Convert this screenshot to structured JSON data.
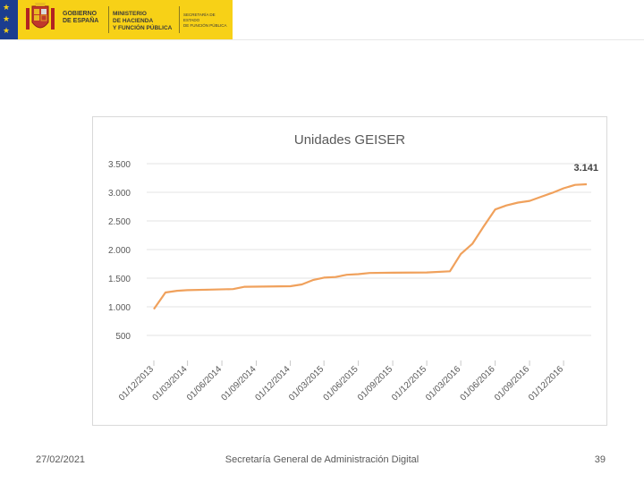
{
  "header": {
    "org_line1": "GOBIERNO",
    "org_line2": "DE ESPAÑA",
    "ministry_line1": "MINISTERIO",
    "ministry_line2": "DE HACIENDA",
    "ministry_line3": "Y FUNCIÓN PÚBLICA",
    "secretariat_line1": "SECRETARÍA DE ESTADO",
    "secretariat_line2": "DE FUNCIÓN PÚBLICA"
  },
  "footer": {
    "date": "27/02/2021",
    "center": "Secretaría General de Administración Digital",
    "page": "39"
  },
  "chart_data": {
    "type": "line",
    "title": "Unidades GEISER",
    "color": "#f0a15c",
    "ylim": [
      500,
      3500
    ],
    "y_ticks": [
      3500,
      3000,
      2500,
      2000,
      1500,
      1000,
      500
    ],
    "y_tick_labels": [
      "3.500",
      "3.000",
      "2.500",
      "2.000",
      "1.500",
      "1.000",
      "500"
    ],
    "x_tick_labels": [
      "01/12/2013",
      "01/03/2014",
      "01/06/2014",
      "01/09/2014",
      "01/12/2014",
      "01/03/2015",
      "01/06/2015",
      "01/09/2015",
      "01/12/2015",
      "01/03/2016",
      "01/06/2016",
      "01/09/2016",
      "01/12/2016"
    ],
    "grid": true,
    "end_label": "3.141",
    "points": [
      {
        "x": "2013-12-01",
        "y": 960
      },
      {
        "x": "2014-01-01",
        "y": 1250
      },
      {
        "x": "2014-02-01",
        "y": 1280
      },
      {
        "x": "2014-03-01",
        "y": 1290
      },
      {
        "x": "2014-05-01",
        "y": 1300
      },
      {
        "x": "2014-07-01",
        "y": 1310
      },
      {
        "x": "2014-08-01",
        "y": 1350
      },
      {
        "x": "2014-12-01",
        "y": 1360
      },
      {
        "x": "2015-01-01",
        "y": 1390
      },
      {
        "x": "2015-02-01",
        "y": 1470
      },
      {
        "x": "2015-03-01",
        "y": 1510
      },
      {
        "x": "2015-04-01",
        "y": 1520
      },
      {
        "x": "2015-05-01",
        "y": 1560
      },
      {
        "x": "2015-06-01",
        "y": 1570
      },
      {
        "x": "2015-07-01",
        "y": 1590
      },
      {
        "x": "2015-09-01",
        "y": 1595
      },
      {
        "x": "2015-12-01",
        "y": 1600
      },
      {
        "x": "2016-02-01",
        "y": 1620
      },
      {
        "x": "2016-03-01",
        "y": 1920
      },
      {
        "x": "2016-04-01",
        "y": 2100
      },
      {
        "x": "2016-05-01",
        "y": 2400
      },
      {
        "x": "2016-06-01",
        "y": 2700
      },
      {
        "x": "2016-07-01",
        "y": 2770
      },
      {
        "x": "2016-08-01",
        "y": 2820
      },
      {
        "x": "2016-09-01",
        "y": 2850
      },
      {
        "x": "2016-10-01",
        "y": 2920
      },
      {
        "x": "2016-11-01",
        "y": 2990
      },
      {
        "x": "2016-12-01",
        "y": 3070
      },
      {
        "x": "2017-01-01",
        "y": 3130
      },
      {
        "x": "2017-02-01",
        "y": 3141
      }
    ]
  }
}
